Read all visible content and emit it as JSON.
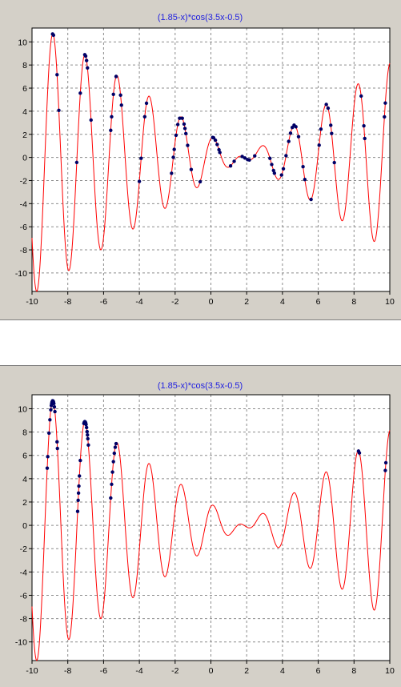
{
  "chart_data": [
    {
      "type": "scatter",
      "title": "(1.85-x)*cos(3.5x-0.5)",
      "xlim": [
        -10,
        10
      ],
      "ylim": [
        -11.6,
        11.2
      ],
      "x_ticks": [
        -10,
        -8,
        -6,
        -4,
        -2,
        0,
        2,
        4,
        6,
        8,
        10
      ],
      "y_ticks": [
        -10,
        -8,
        -6,
        -4,
        -2,
        0,
        2,
        4,
        6,
        8,
        10
      ],
      "grid": true,
      "curve": {
        "formula": "(1.85-x)*cos(3.5x-0.5)",
        "color": "#ff0000"
      },
      "points_color": "#000066",
      "points_x": [
        -8.85,
        -8.8,
        -8.6,
        -8.5,
        -7.5,
        -7.3,
        -7.05,
        -7.0,
        -6.95,
        -6.9,
        -6.7,
        -5.6,
        -5.55,
        -5.45,
        -5.3,
        -5.05,
        -5.0,
        -4.0,
        -3.9,
        -3.7,
        -3.6,
        -2.2,
        -2.1,
        -2.05,
        -1.95,
        -1.85,
        -1.75,
        -1.6,
        -1.5,
        -1.45,
        -1.4,
        -1.3,
        -1.1,
        -0.6,
        0.1,
        0.15,
        0.25,
        0.35,
        0.45,
        0.5,
        1.1,
        1.3,
        1.75,
        1.9,
        2.05,
        2.15,
        2.45,
        3.3,
        3.4,
        3.5,
        3.55,
        3.95,
        4.05,
        4.2,
        4.35,
        4.45,
        4.55,
        4.65,
        4.75,
        4.9,
        5.15,
        5.25,
        5.6,
        6.05,
        6.15,
        6.45,
        6.55,
        6.7,
        6.75,
        6.9,
        8.4,
        8.55,
        8.6,
        9.7,
        9.75
      ],
      "note": ""
    },
    {
      "type": "scatter",
      "title": "(1.85-x)*cos(3.5x-0.5)",
      "xlim": [
        -10,
        10
      ],
      "ylim": [
        -11.6,
        11.2
      ],
      "x_ticks": [
        -10,
        -8,
        -6,
        -4,
        -2,
        0,
        2,
        4,
        6,
        8,
        10
      ],
      "y_ticks": [
        -10,
        -8,
        -6,
        -4,
        -2,
        0,
        2,
        4,
        6,
        8,
        10
      ],
      "grid": true,
      "curve": {
        "formula": "(1.85-x)*cos(3.5x-0.5)",
        "color": "#ff0000"
      },
      "points_color": "#000066",
      "points_x": [
        -9.15,
        -9.12,
        -9.05,
        -9.0,
        -8.95,
        -8.92,
        -8.9,
        -8.88,
        -8.85,
        -8.82,
        -8.8,
        -8.78,
        -8.75,
        -8.72,
        -8.6,
        -8.58,
        -7.45,
        -7.42,
        -7.4,
        -7.38,
        -7.35,
        -7.3,
        -7.1,
        -7.08,
        -7.05,
        -7.02,
        -7.0,
        -6.98,
        -6.95,
        -6.92,
        -6.9,
        -6.88,
        -6.85,
        -5.6,
        -5.55,
        -5.5,
        -5.45,
        -5.4,
        -5.35,
        -5.3,
        8.25,
        8.3,
        9.75,
        9.78
      ]
    }
  ]
}
